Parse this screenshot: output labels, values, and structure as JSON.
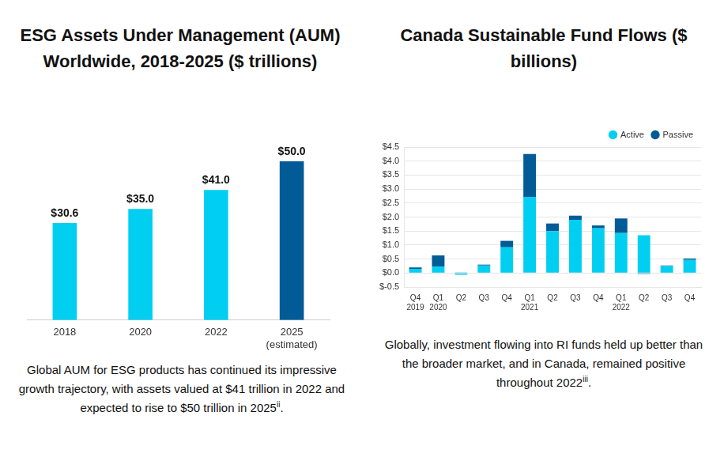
{
  "chart_data": [
    {
      "type": "bar",
      "title": "ESG Assets Under Management (AUM) Worldwide, 2018-2025 ($ trillions)",
      "caption": {
        "text": "Global AUM for ESG products has continued its impressive growth trajectory, with assets valued at $41 trillion in 2022 and expected to rise to $50 trillion in 2025",
        "note": "ii",
        "end": "."
      },
      "categories": [
        "2018",
        "2020",
        "2022",
        "2025\n(estimated)"
      ],
      "values": [
        30.6,
        35.0,
        41.0,
        50.0
      ],
      "value_labels": [
        "$30.6",
        "$35.0",
        "$41.0",
        "$50.0"
      ],
      "colors": [
        "#00cff2",
        "#00cff2",
        "#00cff2",
        "#005b96"
      ],
      "ylim": [
        0,
        55
      ],
      "data_labels": true,
      "grid": false,
      "tick_labels": "x"
    },
    {
      "type": "bar",
      "title": "Canada Sustainable Fund Flows ($ billions)",
      "caption": {
        "text": "Globally, investment flowing into RI funds held up better than the broader market, and in Canada, remained positive throughout 2022",
        "note": "iii",
        "end": "."
      },
      "categories": [
        "Q4\n2019",
        "Q1\n2020",
        "Q2",
        "Q3",
        "Q4",
        "Q1\n2021",
        "Q2",
        "Q3",
        "Q4",
        "Q1\n2022",
        "Q2",
        "Q3",
        "Q4"
      ],
      "series": [
        {
          "name": "Active",
          "color": "#00cff2",
          "values": [
            0.15,
            0.23,
            -0.06,
            0.27,
            0.92,
            2.72,
            1.5,
            1.9,
            1.6,
            1.43,
            1.35,
            0.25,
            0.47
          ]
        },
        {
          "name": "Passive",
          "color": "#005b96",
          "values": [
            0.05,
            0.4,
            0.02,
            0.03,
            0.23,
            1.53,
            0.27,
            0.15,
            0.1,
            0.52,
            -0.03,
            0.02,
            0.05
          ]
        }
      ],
      "stacked": true,
      "ylim": [
        -0.5,
        4.5
      ],
      "yticks": [
        {
          "value": -0.5,
          "label": "$-0.5"
        },
        {
          "value": 0,
          "label": "$0.0"
        },
        {
          "value": 0.5,
          "label": "$0.5"
        },
        {
          "value": 1,
          "label": "$1.0"
        },
        {
          "value": 1.5,
          "label": "$1.5"
        },
        {
          "value": 2,
          "label": "$2.0"
        },
        {
          "value": 2.5,
          "label": "$2.5"
        },
        {
          "value": 3,
          "label": "$3.0"
        },
        {
          "value": 3.5,
          "label": "$3.5"
        },
        {
          "value": 4,
          "label": "$4.0"
        },
        {
          "value": 4.5,
          "label": "$4.5"
        }
      ],
      "grid": true,
      "legend": "top-right"
    }
  ]
}
